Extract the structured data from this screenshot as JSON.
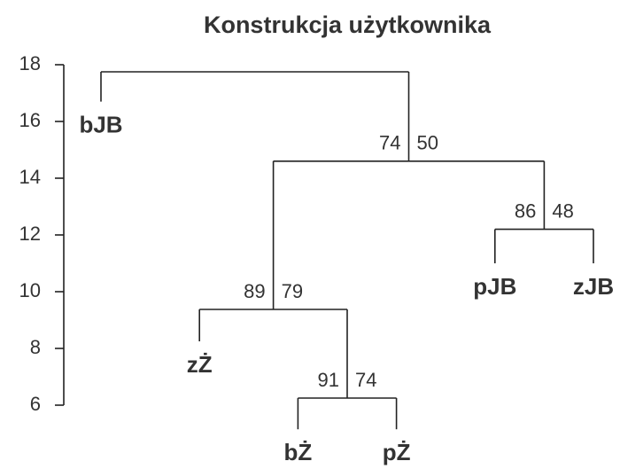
{
  "chart_data": {
    "type": "dendrogram",
    "title": "Konstrukcja użytkownika",
    "ylim": [
      6,
      18
    ],
    "yticks": [
      6,
      8,
      10,
      12,
      14,
      16,
      18
    ],
    "leaves": [
      {
        "label": "bJB",
        "height": 16.7
      },
      {
        "label": "zŻ",
        "height": 8.25
      },
      {
        "label": "bŻ",
        "height": 5.15
      },
      {
        "label": "pŻ",
        "height": 5.15
      },
      {
        "label": "pJB",
        "height": 11.0
      },
      {
        "label": "zJB",
        "height": 11.0
      }
    ],
    "merges": [
      {
        "height": 6.25,
        "children": [
          -3,
          -4
        ],
        "au": 91,
        "bp": 74
      },
      {
        "height": 9.375,
        "children": [
          -2,
          1
        ],
        "au": 89,
        "bp": 79
      },
      {
        "height": 12.2,
        "children": [
          -5,
          -6
        ],
        "au": 86,
        "bp": 48
      },
      {
        "height": 14.6,
        "children": [
          2,
          3
        ],
        "au": 74,
        "bp": 50
      },
      {
        "height": 17.75,
        "children": [
          -1,
          4
        ]
      }
    ]
  }
}
